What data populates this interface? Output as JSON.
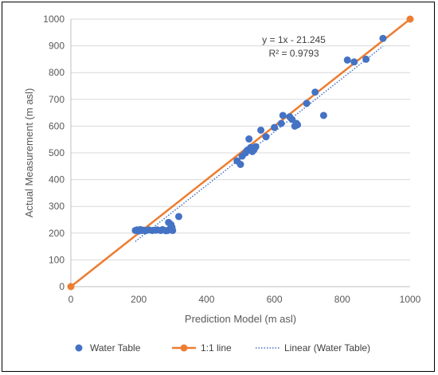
{
  "chart_data": {
    "type": "scatter",
    "xlabel": "Prediction Model (m asl)",
    "ylabel": "Actual Measurement (m asl)",
    "xlim": [
      0,
      1000
    ],
    "ylim": [
      0,
      1000
    ],
    "x_ticks": [
      "0",
      "200",
      "400",
      "600",
      "800",
      "1000"
    ],
    "y_ticks": [
      "0",
      "100",
      "200",
      "300",
      "400",
      "500",
      "600",
      "700",
      "800",
      "900",
      "1000"
    ],
    "grid": "horizontal",
    "legend_position": "bottom",
    "series": [
      {
        "name": "Water Table",
        "kind": "scatter",
        "color": "#4472C4",
        "points": [
          [
            190,
            210
          ],
          [
            195,
            212
          ],
          [
            200,
            208
          ],
          [
            205,
            213
          ],
          [
            210,
            210
          ],
          [
            215,
            211
          ],
          [
            220,
            209
          ],
          [
            230,
            212
          ],
          [
            240,
            210
          ],
          [
            250,
            211
          ],
          [
            255,
            212
          ],
          [
            265,
            210
          ],
          [
            270,
            213
          ],
          [
            280,
            209
          ],
          [
            285,
            210
          ],
          [
            288,
            240
          ],
          [
            292,
            215
          ],
          [
            295,
            232
          ],
          [
            298,
            222
          ],
          [
            300,
            210
          ],
          [
            318,
            262
          ],
          [
            490,
            470
          ],
          [
            500,
            457
          ],
          [
            505,
            488
          ],
          [
            515,
            500
          ],
          [
            520,
            510
          ],
          [
            525,
            552
          ],
          [
            530,
            520
          ],
          [
            535,
            505
          ],
          [
            540,
            512
          ],
          [
            545,
            523
          ],
          [
            560,
            585
          ],
          [
            575,
            560
          ],
          [
            600,
            595
          ],
          [
            620,
            610
          ],
          [
            625,
            640
          ],
          [
            645,
            635
          ],
          [
            652,
            625
          ],
          [
            660,
            600
          ],
          [
            665,
            610
          ],
          [
            668,
            605
          ],
          [
            695,
            685
          ],
          [
            720,
            727
          ],
          [
            745,
            640
          ],
          [
            815,
            847
          ],
          [
            835,
            840
          ],
          [
            870,
            850
          ],
          [
            920,
            928
          ]
        ]
      },
      {
        "name": "1:1 line",
        "kind": "line",
        "color": "#ED7D31",
        "points": [
          [
            0,
            0
          ],
          [
            1000,
            1000
          ]
        ]
      },
      {
        "name": "Linear (Water Table)",
        "kind": "trendline",
        "color": "#4472C4",
        "slope": 1,
        "intercept": -21.245,
        "x_range": [
          190,
          920
        ]
      }
    ],
    "annotation": {
      "equation": "y = 1x - 21.245",
      "r_squared": "R² = 0.9793"
    }
  }
}
